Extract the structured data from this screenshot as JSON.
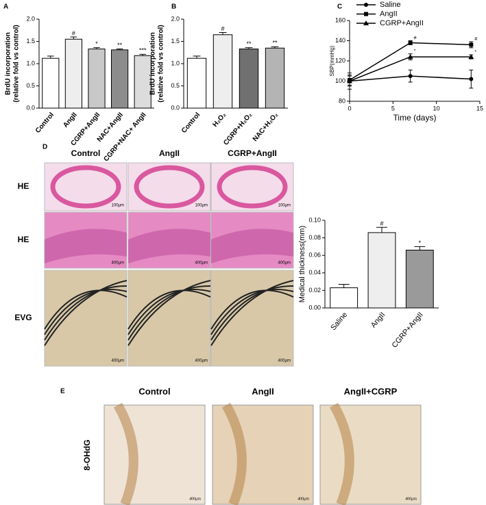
{
  "chart_data": [
    {
      "type": "bar",
      "ylabel": [
        "BrdU incorporation",
        "(relative fold vs control)"
      ],
      "categories": [
        "Control",
        "AngII",
        "CGRP+AngII",
        "NAC+AngII",
        "CGRP+NAC+ AngII"
      ],
      "values": [
        1.12,
        1.55,
        1.33,
        1.31,
        1.18
      ],
      "errors": [
        0.05,
        0.05,
        0.03,
        0.02,
        0.03
      ],
      "annotations": [
        null,
        "#",
        "*",
        "**",
        "***"
      ],
      "colors": [
        "#ffffff",
        "#eeeeee",
        "#c8c8c8",
        "#8c8c8c",
        "#dcdcdc"
      ],
      "ylim": [
        0,
        2.0
      ],
      "yticks": [
        {
          "value": 0,
          "label": "0.0"
        },
        {
          "value": 0.5,
          "label": "0.5"
        },
        {
          "value": 1.0,
          "label": "1.0"
        },
        {
          "value": 1.5,
          "label": "1.5"
        },
        {
          "value": 2.0,
          "label": "2.0"
        }
      ]
    },
    {
      "type": "bar",
      "ylabel": [
        "BrdU incorporation",
        "(relative fold vs control)"
      ],
      "categories": [
        "Control",
        "H₂O₂",
        "CGRP+H₂O₂",
        "NAC+H₂O₂"
      ],
      "values": [
        1.12,
        1.65,
        1.33,
        1.35
      ],
      "errors": [
        0.05,
        0.05,
        0.03,
        0.03
      ],
      "annotations": [
        null,
        "#",
        "**",
        "**"
      ],
      "colors": [
        "#ffffff",
        "#eeeeee",
        "#707070",
        "#b4b4b4"
      ],
      "ylim": [
        0,
        2.0
      ],
      "yticks": [
        {
          "value": 0,
          "label": "0.0"
        },
        {
          "value": 0.5,
          "label": "0.5"
        },
        {
          "value": 1.0,
          "label": "1.0"
        },
        {
          "value": 1.5,
          "label": "1.5"
        },
        {
          "value": 2.0,
          "label": "2.0"
        }
      ]
    },
    {
      "type": "line",
      "ylabel": "SBP(mmHg)",
      "xlabel": "Time (days)",
      "x": [
        0,
        7,
        14
      ],
      "series": [
        {
          "name": "Saline",
          "color": "#000000",
          "marker": "circle",
          "values": [
            100,
            105,
            102
          ],
          "errors": [
            8,
            6,
            9
          ],
          "annotations": [
            null,
            null,
            null
          ]
        },
        {
          "name": "AngII",
          "color": "#000000",
          "marker": "square",
          "values": [
            101,
            138,
            136
          ],
          "errors": [
            5,
            2,
            3
          ],
          "annotations": [
            null,
            "#",
            "#"
          ]
        },
        {
          "name": "CGRP+AngII",
          "color": "#000000",
          "marker": "triangle",
          "values": [
            100,
            124,
            124
          ],
          "errors": [
            5,
            3,
            2
          ],
          "annotations": [
            null,
            "*",
            "*"
          ]
        }
      ],
      "xlim": [
        0,
        15
      ],
      "xticks": [
        0,
        5,
        10,
        15
      ],
      "ylim": [
        80,
        160
      ],
      "yticks": [
        80,
        100,
        120,
        140,
        160
      ]
    },
    {
      "type": "bar",
      "ylabel": [
        "Medical thickness(mm)"
      ],
      "categories": [
        "Saline",
        "AngII",
        "CGRP+AngII"
      ],
      "values": [
        0.023,
        0.086,
        0.066
      ],
      "errors": [
        0.004,
        0.006,
        0.004
      ],
      "annotations": [
        null,
        "#",
        "*"
      ],
      "colors": [
        "#ffffff",
        "#eeeeee",
        "#9a9a9a"
      ],
      "ylim": [
        0,
        0.1
      ],
      "yticks": [
        {
          "value": 0,
          "label": "0.00"
        },
        {
          "value": 0.02,
          "label": "0.02"
        },
        {
          "value": 0.04,
          "label": "0.04"
        },
        {
          "value": 0.06,
          "label": "0.06"
        },
        {
          "value": 0.08,
          "label": "0.08"
        },
        {
          "value": 0.1,
          "label": "0.10"
        }
      ]
    }
  ],
  "figure": {
    "panels": [
      "A",
      "B",
      "C",
      "D",
      "E"
    ],
    "d_columns": [
      "Control",
      "AngII",
      "CGRP+AngII"
    ],
    "d_rows": [
      "HE",
      "HE",
      "EVG"
    ],
    "d_scale_bars": [
      [
        "100μm",
        "100μm",
        "100μm"
      ],
      [
        "400μm",
        "400μm",
        "400μm"
      ],
      [
        "400μm",
        "400μm",
        "400μm"
      ]
    ],
    "e_columns": [
      "Control",
      "AngII",
      "AngII+CGRP"
    ],
    "e_row": "8-OHdG",
    "e_scale_bars": [
      "400μm",
      "400μm",
      "400μm"
    ]
  }
}
